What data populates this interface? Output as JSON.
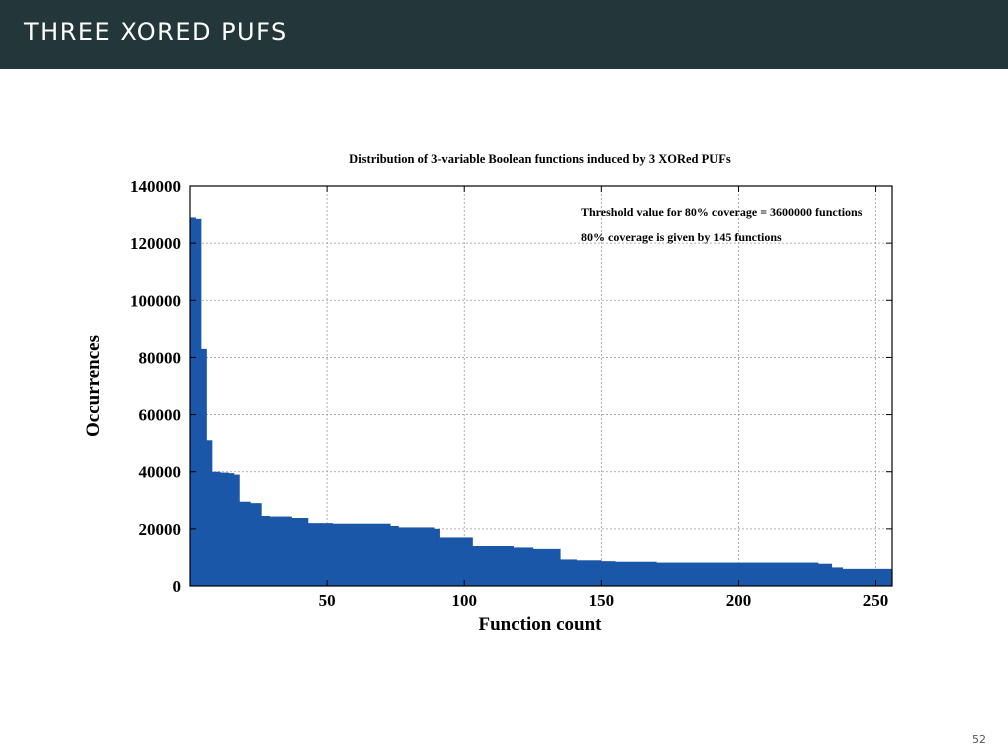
{
  "slide": {
    "title": "THREE XORED PUFS",
    "page_number": "52"
  },
  "colors": {
    "header_bg": "#23373b",
    "bar_fill": "#1b57a8"
  },
  "chart_data": {
    "type": "bar",
    "title": "Distribution of 3-variable Boolean functions induced by 3 XORed PUFs",
    "xlabel": "Function count",
    "ylabel": "Occurrences",
    "xlim": [
      0,
      256
    ],
    "ylim": [
      0,
      140000
    ],
    "xticks": [
      50,
      100,
      150,
      200,
      250
    ],
    "yticks": [
      0,
      20000,
      40000,
      60000,
      80000,
      100000,
      120000,
      140000
    ],
    "grid": true,
    "annotations": [
      "Threshold value for 80% coverage = 3600000 functions",
      "80% coverage is given by 145 functions"
    ],
    "series": [
      {
        "segments": [
          {
            "from": 0,
            "to": 2,
            "value": 129000
          },
          {
            "from": 2,
            "to": 4,
            "value": 128500
          },
          {
            "from": 4,
            "to": 6,
            "value": 83000
          },
          {
            "from": 6,
            "to": 8,
            "value": 51000
          },
          {
            "from": 8,
            "to": 11,
            "value": 40000
          },
          {
            "from": 11,
            "to": 14,
            "value": 39700
          },
          {
            "from": 14,
            "to": 16,
            "value": 39500
          },
          {
            "from": 16,
            "to": 18,
            "value": 39000
          },
          {
            "from": 18,
            "to": 22,
            "value": 29500
          },
          {
            "from": 22,
            "to": 26,
            "value": 29000
          },
          {
            "from": 26,
            "to": 29,
            "value": 24500
          },
          {
            "from": 29,
            "to": 37,
            "value": 24300
          },
          {
            "from": 37,
            "to": 43,
            "value": 23800
          },
          {
            "from": 43,
            "to": 52,
            "value": 22000
          },
          {
            "from": 52,
            "to": 73,
            "value": 21800
          },
          {
            "from": 73,
            "to": 76,
            "value": 21000
          },
          {
            "from": 76,
            "to": 89,
            "value": 20500
          },
          {
            "from": 89,
            "to": 91,
            "value": 20000
          },
          {
            "from": 91,
            "to": 103,
            "value": 17000
          },
          {
            "from": 103,
            "to": 118,
            "value": 14000
          },
          {
            "from": 118,
            "to": 125,
            "value": 13500
          },
          {
            "from": 125,
            "to": 135,
            "value": 13000
          },
          {
            "from": 135,
            "to": 141,
            "value": 9300
          },
          {
            "from": 141,
            "to": 150,
            "value": 9000
          },
          {
            "from": 150,
            "to": 155,
            "value": 8700
          },
          {
            "from": 155,
            "to": 170,
            "value": 8500
          },
          {
            "from": 170,
            "to": 229,
            "value": 8200
          },
          {
            "from": 229,
            "to": 234,
            "value": 7800
          },
          {
            "from": 234,
            "to": 238,
            "value": 6500
          },
          {
            "from": 238,
            "to": 256,
            "value": 6000
          }
        ]
      }
    ]
  }
}
